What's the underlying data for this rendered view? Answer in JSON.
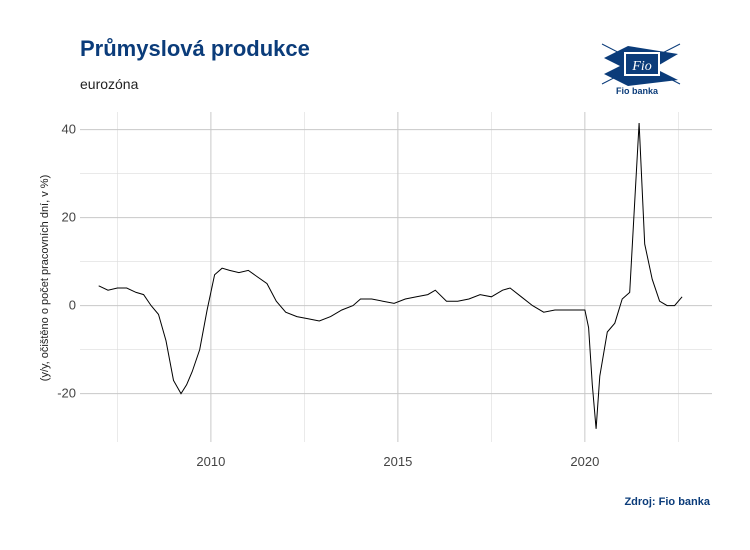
{
  "chart_data": {
    "type": "line",
    "title": "Průmyslová produkce",
    "subtitle": "eurozóna",
    "ylabel": "(y/y, očištěno o počet pracovních dní, v %)",
    "xlabel": "",
    "source": "Zdroj: Fio banka",
    "xlim": [
      2006.5,
      2023.4
    ],
    "ylim": [
      -31,
      44
    ],
    "x_ticks": [
      {
        "value": 2010,
        "label": "2010"
      },
      {
        "value": 2015,
        "label": "2015"
      },
      {
        "value": 2020,
        "label": "2020"
      }
    ],
    "y_ticks": [
      {
        "value": -20,
        "label": "-20"
      },
      {
        "value": 0,
        "label": "0"
      },
      {
        "value": 20,
        "label": "20"
      },
      {
        "value": 40,
        "label": "40"
      }
    ],
    "grid": true,
    "line_color": "#000000",
    "series": [
      {
        "x": [
          2007.0,
          2007.25,
          2007.5,
          2007.75,
          2008.0,
          2008.2,
          2008.4,
          2008.6,
          2008.8,
          2009.0,
          2009.2,
          2009.35,
          2009.5,
          2009.7,
          2009.9,
          2010.1,
          2010.3,
          2010.5,
          2010.75,
          2011.0,
          2011.25,
          2011.5,
          2011.75,
          2012.0,
          2012.3,
          2012.6,
          2012.9,
          2013.2,
          2013.5,
          2013.8,
          2014.0,
          2014.3,
          2014.6,
          2014.9,
          2015.2,
          2015.5,
          2015.8,
          2016.0,
          2016.3,
          2016.6,
          2016.9,
          2017.2,
          2017.5,
          2017.8,
          2018.0,
          2018.3,
          2018.6,
          2018.9,
          2019.2,
          2019.5,
          2019.8,
          2020.0,
          2020.1,
          2020.2,
          2020.3,
          2020.4,
          2020.6,
          2020.8,
          2021.0,
          2021.2,
          2021.35,
          2021.45,
          2021.6,
          2021.8,
          2022.0,
          2022.2,
          2022.4,
          2022.6
        ],
        "y": [
          4.5,
          3.5,
          4.0,
          4.0,
          3.0,
          2.5,
          0.0,
          -2.0,
          -8.0,
          -17.0,
          -20.0,
          -18.0,
          -15.0,
          -10.0,
          -1.0,
          7.0,
          8.5,
          8.0,
          7.5,
          8.0,
          6.5,
          5.0,
          1.0,
          -1.5,
          -2.5,
          -3.0,
          -3.5,
          -2.5,
          -1.0,
          0.0,
          1.5,
          1.5,
          1.0,
          0.5,
          1.5,
          2.0,
          2.5,
          3.5,
          1.0,
          1.0,
          1.5,
          2.5,
          2.0,
          3.5,
          4.0,
          2.0,
          0.0,
          -1.5,
          -1.0,
          -1.0,
          -1.0,
          -1.0,
          -5.0,
          -18.0,
          -28.0,
          -16.0,
          -6.0,
          -4.0,
          1.5,
          3.0,
          26.0,
          41.5,
          14.0,
          6.0,
          1.0,
          0.0,
          0.0,
          2.0
        ]
      }
    ]
  }
}
